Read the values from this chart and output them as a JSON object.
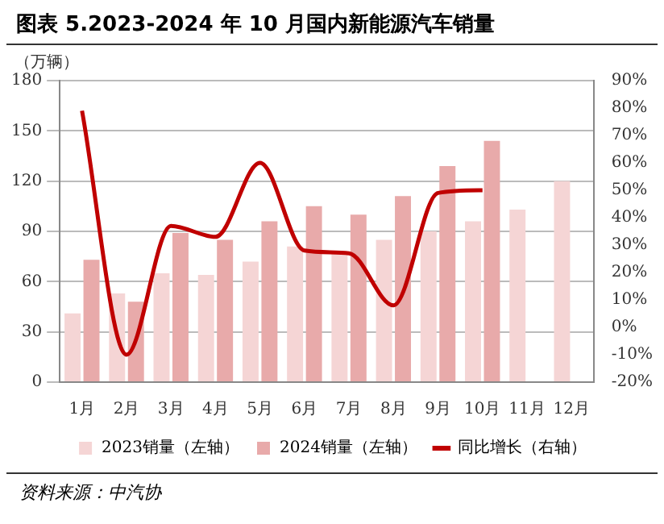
{
  "chart_data": {
    "type": "bar",
    "title": "图表 5.2023-2024 年 10 月国内新能源汽车销量",
    "ylabel": "（万辆）",
    "categories": [
      "1月",
      "2月",
      "3月",
      "4月",
      "5月",
      "6月",
      "7月",
      "8月",
      "9月",
      "10月",
      "11月",
      "12月"
    ],
    "series": [
      {
        "name": "2023销量（左轴）",
        "color": "#f5d5d5",
        "values": [
          41,
          53,
          65,
          64,
          72,
          81,
          78,
          85,
          90,
          96,
          103,
          120
        ]
      },
      {
        "name": "2024销量（左轴）",
        "color": "#e8aaaa",
        "values": [
          73,
          48,
          89,
          85,
          96,
          105,
          100,
          111,
          129,
          144,
          null,
          null
        ]
      },
      {
        "name": "同比增长（右轴）",
        "type": "line",
        "axis": "y2",
        "color": "#c00000",
        "values": [
          79,
          -10,
          37,
          33,
          60,
          28,
          27,
          8,
          49,
          50,
          null,
          null
        ]
      }
    ],
    "ylim": [
      0,
      180
    ],
    "yticks": [
      0,
      30,
      60,
      90,
      120,
      150,
      180
    ],
    "y2lim": [
      -20,
      90
    ],
    "y2ticks": [
      {
        "value": -20,
        "label": "-20%"
      },
      {
        "value": -10,
        "label": "-10%"
      },
      {
        "value": 0,
        "label": "0%"
      },
      {
        "value": 10,
        "label": "10%"
      },
      {
        "value": 20,
        "label": "20%"
      },
      {
        "value": 30,
        "label": "30%"
      },
      {
        "value": 40,
        "label": "40%"
      },
      {
        "value": 50,
        "label": "50%"
      },
      {
        "value": 60,
        "label": "60%"
      },
      {
        "value": 70,
        "label": "70%"
      },
      {
        "value": 80,
        "label": "80%"
      },
      {
        "value": 90,
        "label": "90%"
      }
    ],
    "grid": "y",
    "legend": "bottom",
    "annotations": [
      "资料来源：中汽协"
    ]
  }
}
